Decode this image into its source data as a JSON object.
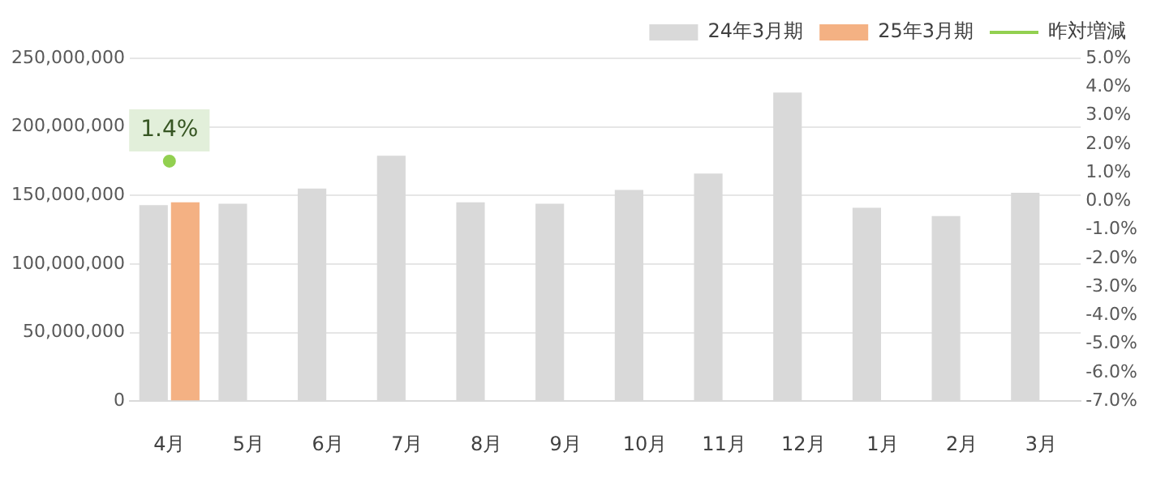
{
  "chart_data": {
    "type": "bar",
    "categories": [
      "4月",
      "5月",
      "6月",
      "7月",
      "8月",
      "9月",
      "10月",
      "11月",
      "12月",
      "1月",
      "2月",
      "3月"
    ],
    "series": [
      {
        "name": "24年3月期",
        "color": "#d9d9d9",
        "values": [
          143000000,
          144000000,
          155000000,
          179000000,
          145000000,
          144000000,
          154000000,
          166000000,
          225000000,
          141000000,
          135000000,
          152000000
        ]
      },
      {
        "name": "25年3月期",
        "color": "#f4b183",
        "values": [
          145000000,
          null,
          null,
          null,
          null,
          null,
          null,
          null,
          null,
          null,
          null,
          null
        ]
      },
      {
        "name": "昨対増減",
        "type": "line",
        "axis": "y2",
        "color": "#92d050",
        "marker": "circle",
        "values": [
          1.4,
          null,
          null,
          null,
          null,
          null,
          null,
          null,
          null,
          null,
          null,
          null
        ],
        "value_labels": [
          "1.4%",
          null,
          null,
          null,
          null,
          null,
          null,
          null,
          null,
          null,
          null,
          null
        ]
      }
    ],
    "ylim": [
      0,
      250000000
    ],
    "yticks": [
      {
        "value": 0,
        "label": "0"
      },
      {
        "value": 50000000,
        "label": "50,000,000"
      },
      {
        "value": 100000000,
        "label": "100,000,000"
      },
      {
        "value": 150000000,
        "label": "150,000,000"
      },
      {
        "value": 200000000,
        "label": "200,000,000"
      },
      {
        "value": 250000000,
        "label": "250,000,000"
      }
    ],
    "y2lim": [
      -7,
      5
    ],
    "y2ticks": [
      {
        "value": -7,
        "label": "-7.0%"
      },
      {
        "value": -6,
        "label": "-6.0%"
      },
      {
        "value": -5,
        "label": "-5.0%"
      },
      {
        "value": -4,
        "label": "-4.0%"
      },
      {
        "value": -3,
        "label": "-3.0%"
      },
      {
        "value": -2,
        "label": "-2.0%"
      },
      {
        "value": -1,
        "label": "-1.0%"
      },
      {
        "value": 0,
        "label": "0.0%"
      },
      {
        "value": 1,
        "label": "1.0%"
      },
      {
        "value": 2,
        "label": "2.0%"
      },
      {
        "value": 3,
        "label": "3.0%"
      },
      {
        "value": 4,
        "label": "4.0%"
      },
      {
        "value": 5,
        "label": "5.0%"
      }
    ],
    "grid": "y",
    "legend": "top right"
  }
}
